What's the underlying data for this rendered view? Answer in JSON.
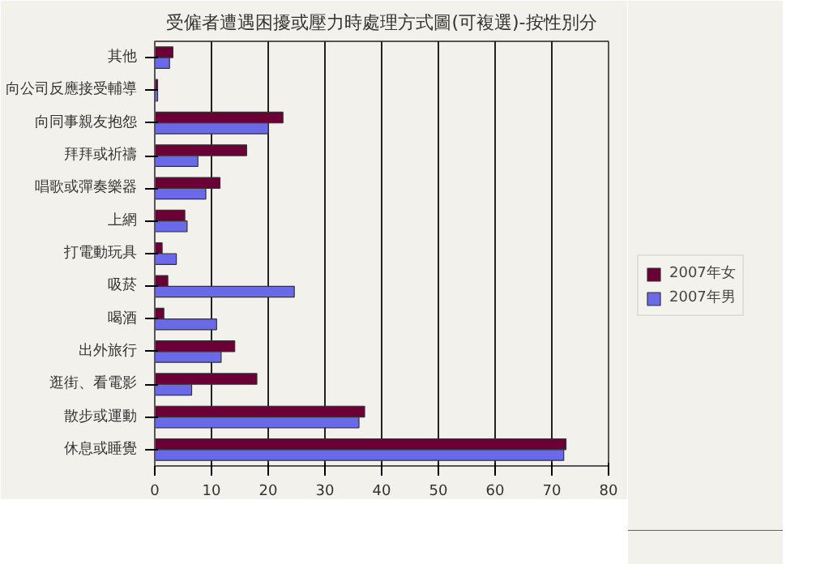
{
  "chart_data": {
    "type": "bar",
    "orientation": "horizontal",
    "title": "受僱者遭遇困擾或壓力時處理方式圖(可複選)-按性別分",
    "categories": [
      "其他",
      "向公司反應接受輔導",
      "向同事親友抱怨",
      "拜拜或祈禱",
      "唱歌或彈奏樂器",
      "上網",
      "打電動玩具",
      "吸菸",
      "喝酒",
      "出外旅行",
      "逛街、看電影",
      "散步或運動",
      "休息或睡覺"
    ],
    "series": [
      {
        "name": "2007年女",
        "color": "#6b0037",
        "values": [
          3.2,
          0.5,
          22.6,
          16.2,
          11.5,
          5.3,
          1.3,
          2.3,
          1.6,
          14.1,
          18.0,
          37.0,
          72.5
        ]
      },
      {
        "name": "2007年男",
        "color": "#6a6ae8",
        "values": [
          2.6,
          0.5,
          20.0,
          7.6,
          9.0,
          5.7,
          3.8,
          24.6,
          10.9,
          11.7,
          6.5,
          36.0,
          72.1
        ]
      }
    ],
    "xlim": [
      0,
      80
    ],
    "xticks": [
      0,
      10,
      20,
      30,
      40,
      50,
      60,
      70,
      80
    ],
    "grid": "x",
    "legend": "right"
  }
}
